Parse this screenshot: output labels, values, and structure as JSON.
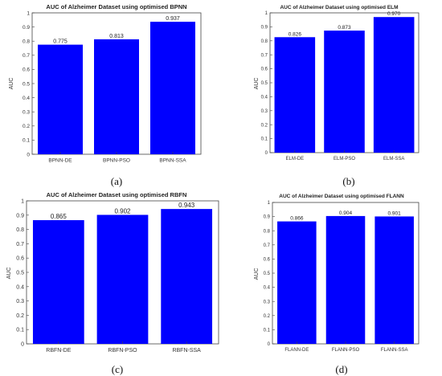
{
  "chart_data": [
    {
      "type": "bar",
      "title": "AUC of Alzheimer Dataset using optimised BPNN",
      "ylabel": "AUC",
      "xlabel": "",
      "categories": [
        "BPNN-DE",
        "BPNN-PSO",
        "BPNN-SSA"
      ],
      "values": [
        0.775,
        0.813,
        0.937
      ],
      "value_labels": [
        "0.775",
        "0.813",
        "0.937"
      ],
      "ylim": [
        0,
        1
      ],
      "yticks": [
        "0",
        "0.1",
        "0.2",
        "0.3",
        "0.4",
        "0.5",
        "0.6",
        "0.7",
        "0.8",
        "0.9",
        "1"
      ],
      "caption": "(a)",
      "bar_color": "#0000ff",
      "grid": false
    },
    {
      "type": "bar",
      "title": "AUC of Alzheimer Dataset using optimised ELM",
      "ylabel": "AUC",
      "xlabel": "",
      "categories": [
        "ELM-DE",
        "ELM-PSO",
        "ELM-SSA"
      ],
      "values": [
        0.826,
        0.873,
        0.97
      ],
      "value_labels": [
        "0.826",
        "0.873",
        "0.970"
      ],
      "ylim": [
        0,
        1
      ],
      "yticks": [
        "0",
        "0.1",
        "0.2",
        "0.3",
        "0.4",
        "0.5",
        "0.6",
        "0.7",
        "0.8",
        "0.9",
        "1"
      ],
      "caption": "(b)",
      "bar_color": "#0000ff",
      "grid": false
    },
    {
      "type": "bar",
      "title": "AUC of Alzheimer Dataset using optimised RBFN",
      "ylabel": "AUC",
      "xlabel": "",
      "categories": [
        "RBFN-DE",
        "RBFN-PSO",
        "RBFN-SSA"
      ],
      "values": [
        0.865,
        0.902,
        0.943
      ],
      "value_labels": [
        "0.865",
        "0.902",
        "0.943"
      ],
      "ylim": [
        0,
        1
      ],
      "yticks": [
        "0",
        "0.1",
        "0.2",
        "0.3",
        "0.4",
        "0.5",
        "0.6",
        "0.7",
        "0.8",
        "0.9",
        "1"
      ],
      "caption": "(c)",
      "bar_color": "#0000ff",
      "grid": false
    },
    {
      "type": "bar",
      "title": "AUC of Alzheimer Dataset using optimised FLANN",
      "ylabel": "AUC",
      "xlabel": "",
      "categories": [
        "FLANN-DE",
        "FLANN-PSO",
        "FLANN-SSA"
      ],
      "values": [
        0.866,
        0.904,
        0.901
      ],
      "value_labels": [
        "0.866",
        "0.904",
        "0.901"
      ],
      "ylim": [
        0,
        1
      ],
      "yticks": [
        "0",
        "0.1",
        "0.2",
        "0.3",
        "0.4",
        "0.5",
        "0.6",
        "0.7",
        "0.8",
        "0.9",
        "1"
      ],
      "caption": "(d)",
      "bar_color": "#0000ff",
      "grid": false
    }
  ]
}
